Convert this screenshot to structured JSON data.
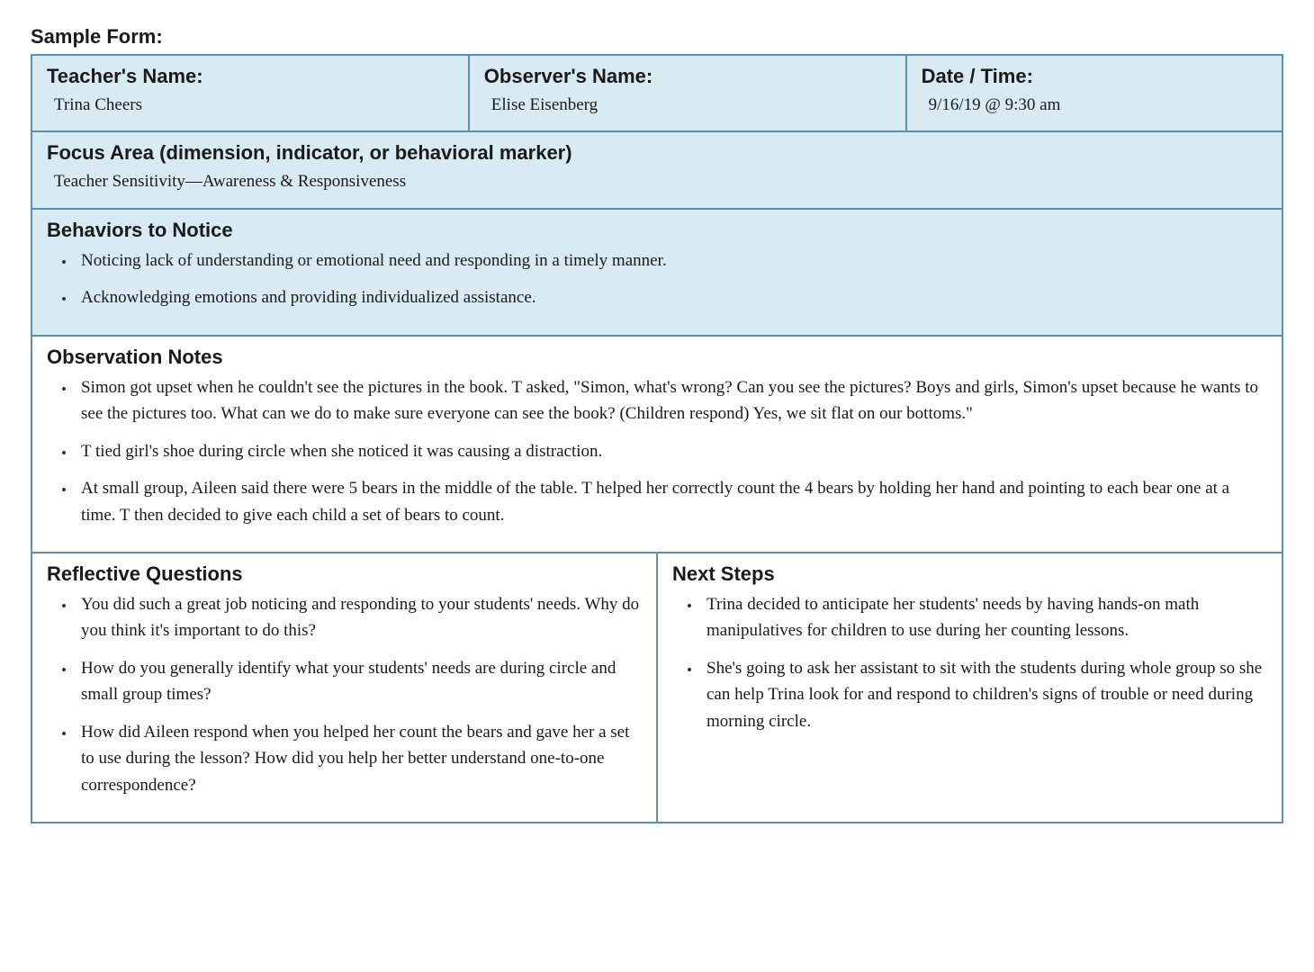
{
  "title": "Sample Form:",
  "colors": {
    "border": "#5a8fb2",
    "header_bg": "#d8eaf2",
    "text": "#1a1a1a",
    "page_bg": "#ffffff"
  },
  "typography": {
    "label_fontsize": 22,
    "label_weight": 700,
    "body_fontsize": 19,
    "handwritten_family": "Segoe Script, Bradley Hand, Comic Sans MS, cursive",
    "label_family": "Helvetica Neue, Helvetica, Arial, sans-serif"
  },
  "header": {
    "teacher_label": "Teacher's Name:",
    "teacher_value": "Trina Cheers",
    "observer_label": "Observer's Name:",
    "observer_value": "Elise Eisenberg",
    "date_label": "Date / Time:",
    "date_value": "9/16/19 @ 9:30 am"
  },
  "focus": {
    "label": "Focus Area (dimension, indicator, or behavioral marker)",
    "value": "Teacher Sensitivity—Awareness & Responsiveness"
  },
  "behaviors": {
    "label": "Behaviors to Notice",
    "items": [
      "Noticing lack of understanding or emotional need and responding in a timely manner.",
      "Acknowledging emotions and providing individualized assistance."
    ]
  },
  "notes": {
    "label": "Observation Notes",
    "items": [
      "Simon got upset when he couldn't see the pictures in the book. T asked, \"Simon, what's wrong? Can you see the pictures? Boys and girls, Simon's upset because he wants to see the pictures too. What can we do to make sure everyone can see the book? (Children respond) Yes, we sit flat on our bottoms.\"",
      "T tied girl's shoe during circle when she noticed it was causing a distraction.",
      "At small group, Aileen said there were 5 bears in the middle of the table. T helped her correctly count the 4 bears by holding her hand and pointing to each bear one at a time. T then decided to give each child a set of bears to count."
    ]
  },
  "reflective": {
    "label": "Reflective Questions",
    "items": [
      "You did such a great job noticing and responding to your students' needs. Why do you think it's important to do this?",
      "How do you generally identify what your students' needs are during circle and small group times?",
      "How did Aileen respond when you helped her count the bears and gave her a set to use during the lesson? How did you help her better understand one-to-one correspondence?"
    ]
  },
  "nextsteps": {
    "label": "Next Steps",
    "items": [
      "Trina decided to anticipate her students' needs by having hands-on math manipulatives for children to use during her counting lessons.",
      "She's going to ask her assistant to sit with the students during whole group so she can help Trina look for and respond to children's signs of trouble or need during morning circle."
    ]
  }
}
